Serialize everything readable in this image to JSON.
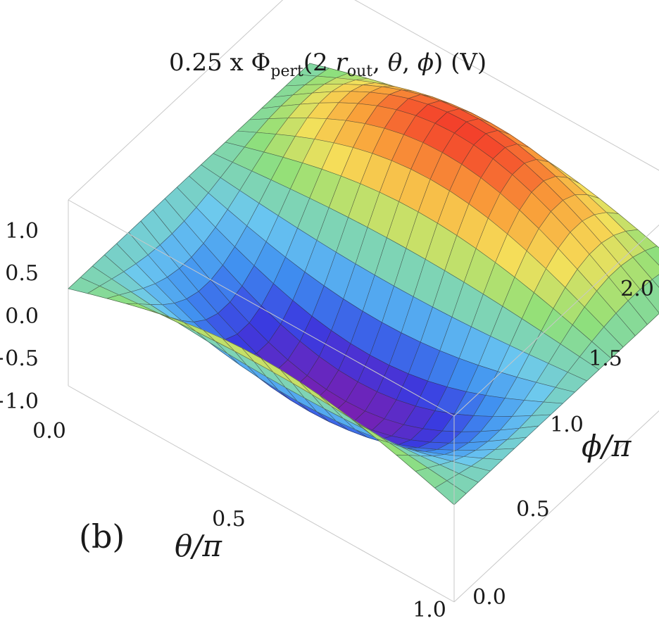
{
  "chart_data": {
    "type": "surface3d",
    "title": {
      "prefix": "0.25 x Φ",
      "sub1": "pert",
      "mid1": "(2 ",
      "r": "r",
      "sub2": "out",
      "mid2": ", ",
      "theta": "θ",
      "mid3": ", ",
      "phi": "ϕ",
      "suffix": ") (V)"
    },
    "panel_label": "(b)",
    "x_axis": {
      "label": "θ/π",
      "range": [
        0,
        1
      ],
      "ticks": [
        "0.0",
        "0.5",
        "1.0"
      ]
    },
    "y_axis": {
      "label": "ϕ/π",
      "range": [
        0,
        2
      ],
      "ticks": [
        "0.0",
        "0.5",
        "1.0",
        "1.5",
        "2.0"
      ]
    },
    "z_axis": {
      "range": [
        -1,
        1
      ],
      "ticks": [
        "1.0",
        "0.5",
        "0.0",
        "−0.5",
        "−1.0"
      ]
    },
    "surface": {
      "description_formula": "z = sin(pi*theta) * cos(pi*phi + 0.35*pi)",
      "theta_samples": [
        0,
        0.05,
        0.1,
        0.15,
        0.2,
        0.25,
        0.3,
        0.35,
        0.4,
        0.45,
        0.5,
        0.55,
        0.6,
        0.65,
        0.7,
        0.75,
        0.8,
        0.85,
        0.9,
        0.95,
        1.0
      ],
      "phi_samples": [
        0,
        0.1,
        0.2,
        0.3,
        0.4,
        0.5,
        0.6,
        0.7,
        0.8,
        0.9,
        1.0,
        1.1,
        1.2,
        1.3,
        1.4,
        1.5,
        1.6,
        1.7,
        1.8,
        1.9,
        2.0
      ],
      "colormap": [
        "#7a1fb0",
        "#3a3ae0",
        "#3f8ff0",
        "#6cc8f0",
        "#8fe07a",
        "#f5e05a",
        "#f9a13a",
        "#f33a2a"
      ]
    },
    "box": true,
    "grid": false
  }
}
